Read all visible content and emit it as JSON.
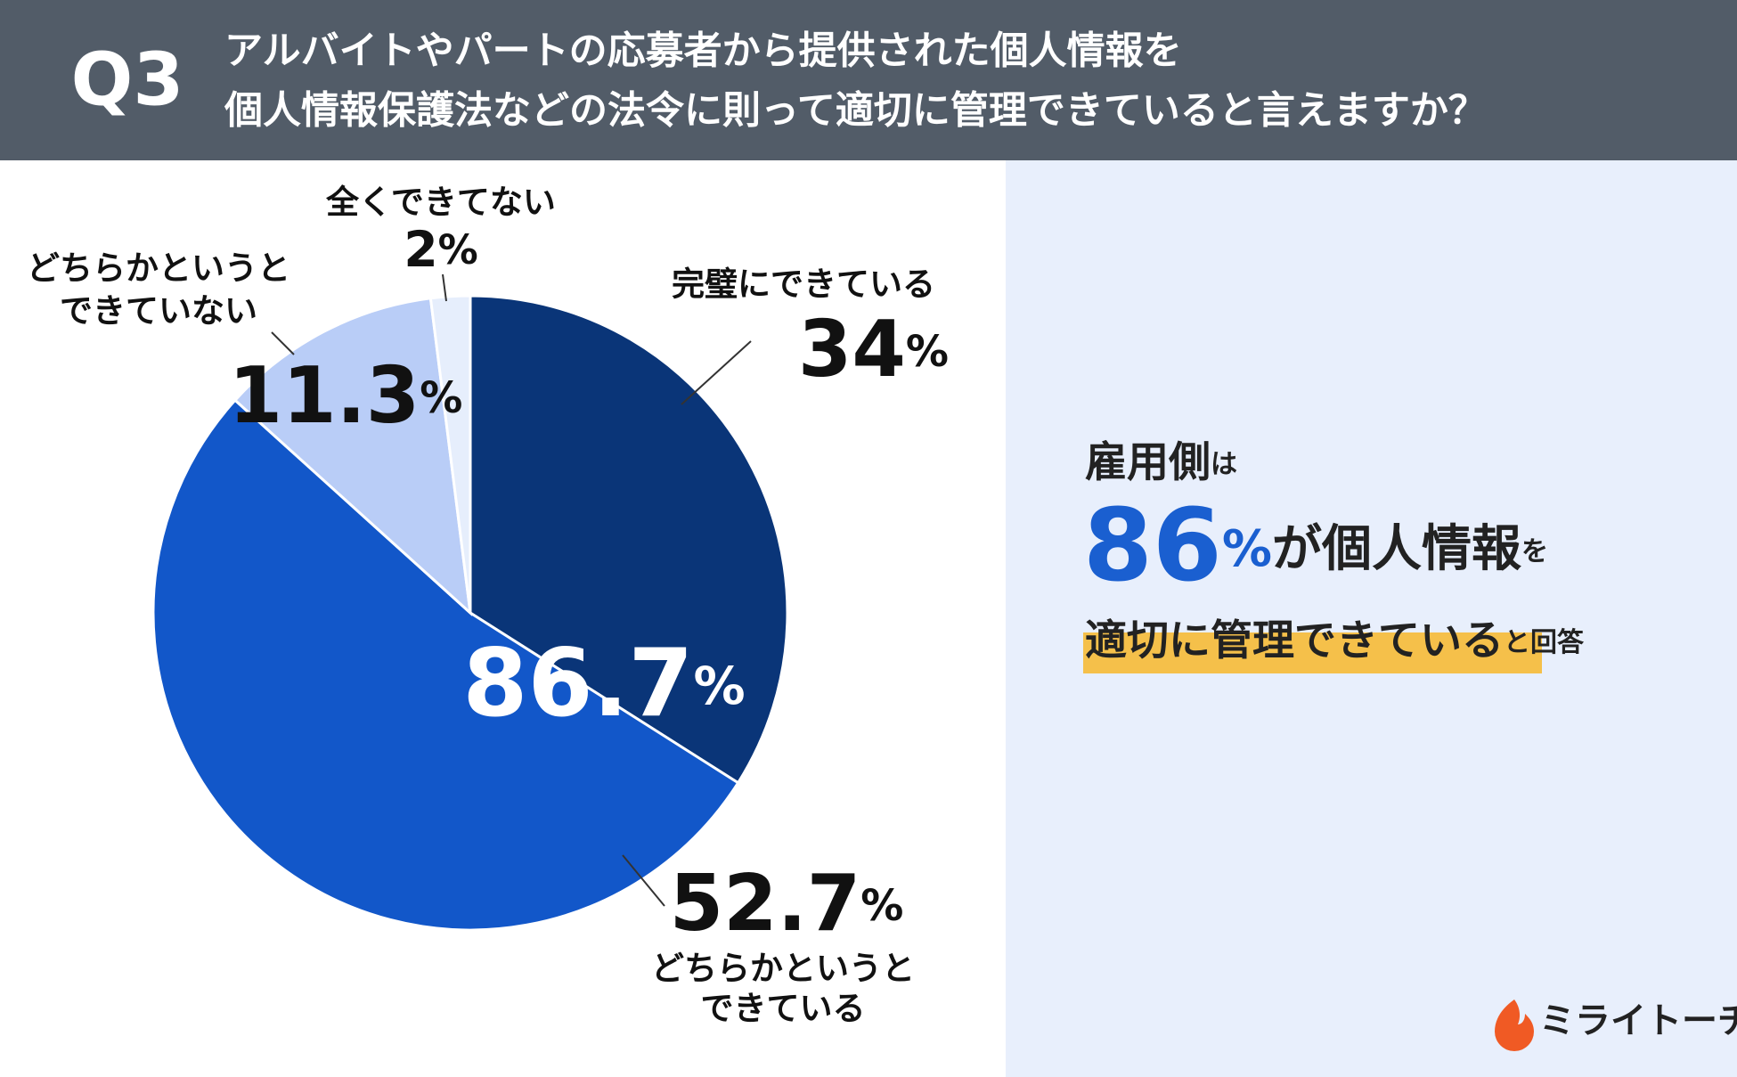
{
  "header": {
    "question": "Q3",
    "title_lines": [
      "アルバイトやパートの応募者から提供された個人情報を",
      "個人情報保護法などの法令に則って適切に管理できていると言えますか？"
    ]
  },
  "chart_data": {
    "type": "pie",
    "categories": [
      "完璧にできている",
      "どちらかというとできている",
      "どちらかというとできていない",
      "全くできてない"
    ],
    "category_lines": [
      [
        "完璧にできている"
      ],
      [
        "どちらかというと",
        "できている"
      ],
      [
        "どちらかというと",
        "できていない"
      ],
      [
        "全くできてない"
      ]
    ],
    "values": [
      34,
      52.7,
      11.3,
      2
    ],
    "unit": "%",
    "colors": [
      "#0a3578",
      "#1257c9",
      "#b9cdf7",
      "#e6eefc"
    ],
    "total_label": 86.7
  },
  "summary": {
    "line1": [
      "雇用側",
      "は"
    ],
    "line2": [
      "86",
      "%",
      "が個人情報",
      "を"
    ],
    "line3": [
      "適切に管理できている",
      "と回答"
    ]
  },
  "logo": "ミライトーチ"
}
